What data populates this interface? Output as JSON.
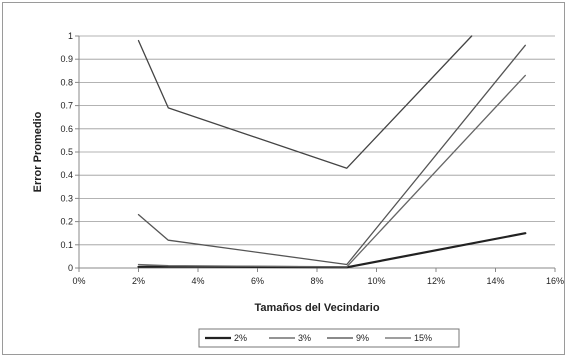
{
  "chart_data": {
    "type": "line",
    "title": "",
    "xlabel": "Tamaños del Vecindario",
    "ylabel": "Error Promedio",
    "xlim": [
      0,
      16
    ],
    "ylim": [
      0,
      1
    ],
    "x_ticks": [
      0,
      2,
      4,
      6,
      8,
      10,
      12,
      14,
      16
    ],
    "x_tick_labels": [
      "0%",
      "2%",
      "4%",
      "6%",
      "8%",
      "10%",
      "12%",
      "14%",
      "16%"
    ],
    "y_ticks": [
      0,
      0.1,
      0.2,
      0.3,
      0.4,
      0.5,
      0.6,
      0.7,
      0.8,
      0.9,
      1
    ],
    "y_tick_labels": [
      "0",
      "0.1",
      "0.2",
      "0.3",
      "0.4",
      "0.5",
      "0.6",
      "0.7",
      "0.8",
      "0.9",
      "1"
    ],
    "grid": "horizontal",
    "legend_position": "bottom",
    "series": [
      {
        "name": "2%",
        "color": "#222222",
        "width": 2.2,
        "points": [
          [
            2,
            0.005
          ],
          [
            3,
            0.006
          ],
          [
            4,
            0.006
          ],
          [
            9,
            0.003
          ],
          [
            15,
            0.15
          ]
        ]
      },
      {
        "name": "3%",
        "color": "#555555",
        "width": 1.3,
        "points": [
          [
            2,
            0.23
          ],
          [
            3,
            0.12
          ],
          [
            9,
            0.015
          ],
          [
            15,
            0.96
          ]
        ]
      },
      {
        "name": "9%",
        "color": "#444444",
        "width": 1.3,
        "points": [
          [
            2,
            0.98
          ],
          [
            3,
            0.69
          ],
          [
            9,
            0.43
          ],
          [
            13.2,
            1.0
          ]
        ]
      },
      {
        "name": "15%",
        "color": "#666666",
        "width": 1.3,
        "points": [
          [
            2,
            0.015
          ],
          [
            3,
            0.01
          ],
          [
            9,
            0.005
          ],
          [
            15,
            0.83
          ]
        ]
      }
    ]
  }
}
